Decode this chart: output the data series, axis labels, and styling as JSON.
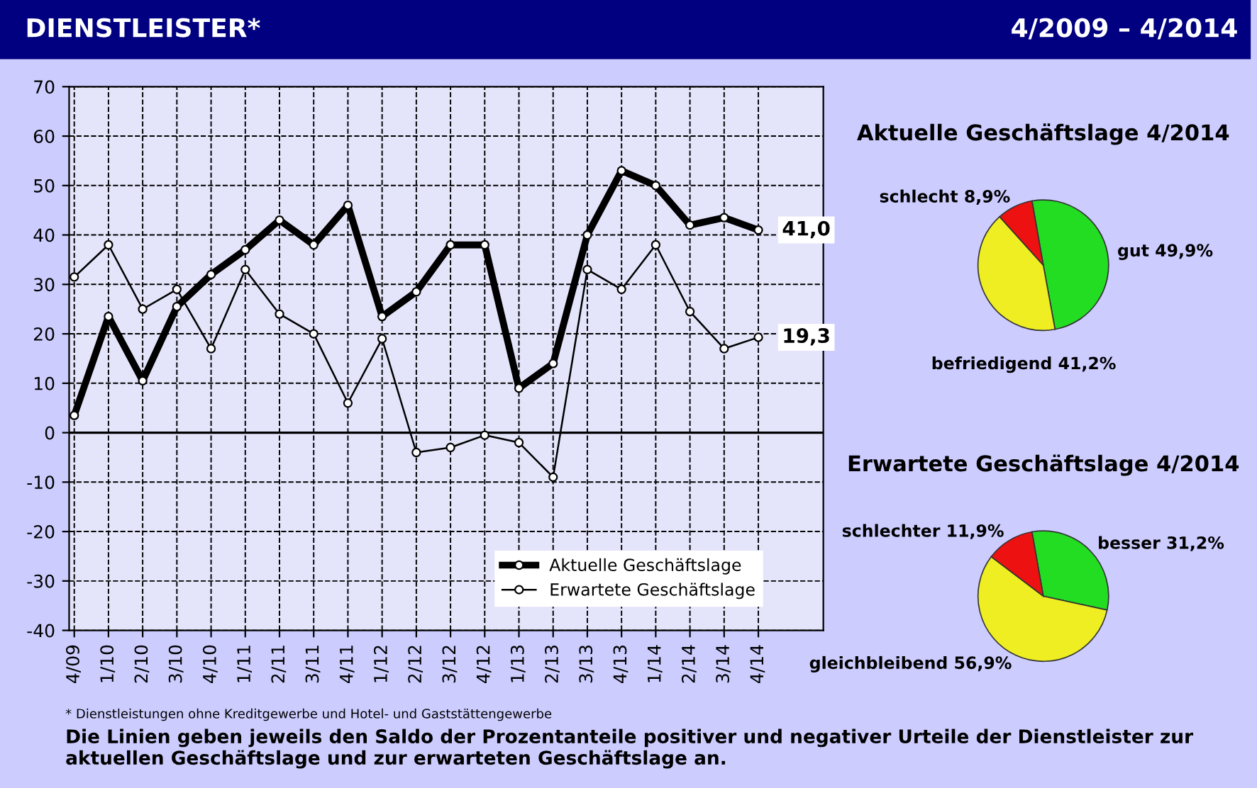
{
  "chart_data": [
    {
      "type": "line",
      "title": "DIENSTLEISTER*",
      "categories": [
        "4/09",
        "1/10",
        "2/10",
        "3/10",
        "4/10",
        "1/11",
        "2/11",
        "3/11",
        "4/11",
        "1/12",
        "2/12",
        "3/12",
        "4/12",
        "1/13",
        "2/13",
        "3/13",
        "4/13",
        "1/14",
        "2/14",
        "3/14",
        "4/14"
      ],
      "series": [
        {
          "name": "Aktuelle Geschäftslage",
          "color": "#000000",
          "values": [
            3.5,
            23.5,
            10.5,
            25.5,
            32,
            37,
            43,
            38,
            46,
            23.5,
            28.5,
            38,
            38,
            9,
            14,
            40,
            53,
            50,
            42,
            43.5,
            41.0
          ],
          "value_labels": [
            null,
            null,
            null,
            null,
            null,
            null,
            null,
            null,
            null,
            null,
            null,
            null,
            null,
            null,
            null,
            null,
            null,
            null,
            null,
            null,
            "41,0"
          ]
        },
        {
          "name": "Erwartete Geschäftslage",
          "color": "#000000",
          "values": [
            31.5,
            38,
            25,
            29,
            17,
            33,
            24,
            20,
            6,
            19,
            -4,
            -3,
            -0.5,
            -2,
            -9,
            33,
            29,
            38,
            24.5,
            17,
            19.3
          ],
          "value_labels": [
            null,
            null,
            null,
            null,
            null,
            null,
            null,
            null,
            null,
            null,
            null,
            null,
            null,
            null,
            null,
            null,
            null,
            null,
            null,
            null,
            "19,3"
          ]
        }
      ],
      "ylim": [
        -40,
        70
      ],
      "yticks": [
        -40,
        -30,
        -20,
        -10,
        0,
        10,
        20,
        30,
        40,
        50,
        60,
        70
      ],
      "ref_lines": [
        {
          "axis": "y",
          "value": 0,
          "color": "#000000"
        }
      ],
      "grid": true,
      "legend": "bottom right",
      "marker": "circle",
      "line_style": "solid",
      "annotations": [
        "* Dienstleistungen ohne Kreditgewerbe und Hotel- und Gaststättengewerbe",
        "Die Linien geben jeweils den Saldo der Prozentanteile positiver und negativer Urteile der Dienstleister zur aktuellen Geschäftslage und zur erwarteten Geschäftslage an."
      ]
    },
    {
      "type": "pie",
      "title": "Aktuelle Geschäftslage 4/2014",
      "annotations": [
        "4/2009 – 4/2014"
      ],
      "categories": [
        "gut 49,9%",
        "befriedigend 41,2%",
        "schlecht 8,9%"
      ],
      "values": [
        49.9,
        41.2,
        8.9
      ],
      "colors": [
        "#22dd22",
        "#eeee22",
        "#ee1111"
      ]
    },
    {
      "type": "pie",
      "title": "Erwartete Geschäftslage 4/2014",
      "categories": [
        "besser 31,2%",
        "gleichbleibend 56,9%",
        "schlechter 11,9%"
      ],
      "values": [
        31.2,
        56.9,
        11.9
      ],
      "colors": [
        "#22dd22",
        "#eeee22",
        "#ee1111"
      ]
    }
  ]
}
